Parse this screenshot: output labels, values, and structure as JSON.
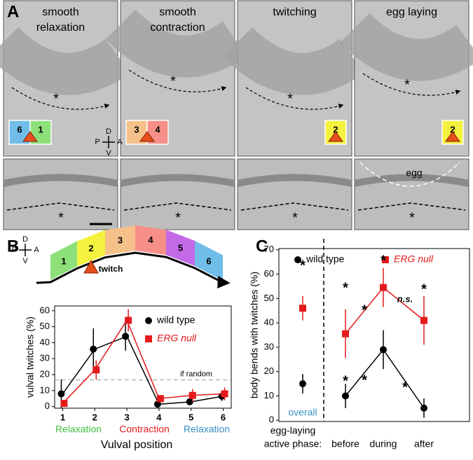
{
  "compass": [
    "D",
    "P",
    "A",
    "V"
  ],
  "panel_a": {
    "label": "A",
    "columns": [
      {
        "title": [
          "smooth",
          "relaxation"
        ],
        "star": "*",
        "segments": [
          {
            "label": "6",
            "color": "#6fbde8"
          },
          {
            "label": "1",
            "color": "#8ee07a"
          }
        ]
      },
      {
        "title": [
          "smooth",
          "contraction"
        ],
        "star": "*",
        "segments": [
          {
            "label": "3",
            "color": "#f6c08a"
          },
          {
            "label": "4",
            "color": "#f58f87"
          }
        ]
      },
      {
        "title": [
          "twitching"
        ],
        "star": "*",
        "segments": [
          {
            "label": "2",
            "color": "#f5f23f"
          }
        ]
      },
      {
        "title": [
          "egg laying"
        ],
        "star": "*",
        "note": "egg",
        "segments": [
          {
            "label": "2",
            "color": "#f5f23f"
          }
        ]
      }
    ]
  },
  "diagram_b": {
    "segments": [
      {
        "label": "1",
        "color": "#8ee07a"
      },
      {
        "label": "2",
        "color": "#f5f23f"
      },
      {
        "label": "3",
        "color": "#f6c08a"
      },
      {
        "label": "4",
        "color": "#f58f87"
      },
      {
        "label": "5",
        "color": "#c46ae8"
      },
      {
        "label": "6",
        "color": "#6fbde8"
      }
    ],
    "twitch": "twitch"
  },
  "chart_data": [
    {
      "type": "line",
      "panel": "B",
      "x_title": "Vulval position",
      "y_title": "vulval twitches (%)",
      "x": [
        1,
        2,
        3,
        4,
        5,
        6
      ],
      "xlim": [
        0.75,
        6.25
      ],
      "xticks": [
        1,
        2,
        3,
        4,
        5,
        6
      ],
      "ylim": [
        -1,
        63
      ],
      "yticks": [
        0,
        10,
        20,
        30,
        40,
        50,
        60
      ],
      "reference": {
        "value": 16.7,
        "label": "if random"
      },
      "groups": [
        {
          "label": "Relaxation",
          "color": "#3fbf3f"
        },
        {
          "label": "Contraction",
          "color": "#e4191b"
        },
        {
          "label": "Relaxation",
          "color": "#3a8fc8"
        }
      ],
      "series": [
        {
          "name": "wild type",
          "color": "#000000",
          "marker": "circle",
          "values": [
            8,
            36,
            44,
            1.5,
            3,
            6.5
          ],
          "errors": [
            9,
            13,
            9,
            1,
            2,
            3
          ]
        },
        {
          "name": "ERG null",
          "color": "#e4191b",
          "marker": "square",
          "values": [
            2,
            23,
            54,
            5,
            7,
            8
          ],
          "errors": [
            1,
            6,
            7,
            2,
            4,
            4
          ]
        }
      ]
    },
    {
      "type": "line",
      "panel": "C",
      "y_title": "body bends with twitches (%)",
      "x_label": [
        "egg-laying",
        "active phase:"
      ],
      "categories": [
        "overall",
        "before",
        "during",
        "after"
      ],
      "divider": true,
      "ylim": [
        -0.5,
        70.5
      ],
      "yticks": [
        0,
        10,
        20,
        30,
        40,
        50,
        60,
        70
      ],
      "series": [
        {
          "name": "wild type",
          "color": "#000000",
          "marker": "circle",
          "values": [
            15,
            10,
            29,
            5
          ],
          "errors": [
            4,
            5,
            8,
            4
          ]
        },
        {
          "name": "ERG null",
          "color": "#e4191b",
          "marker": "square",
          "values": [
            46,
            35.5,
            54.5,
            41
          ],
          "errors": [
            5,
            10,
            8,
            10
          ]
        }
      ],
      "annotations": [
        "*",
        "*",
        "*",
        "*",
        "*",
        "*",
        "*",
        "n.s.",
        "*"
      ]
    }
  ]
}
